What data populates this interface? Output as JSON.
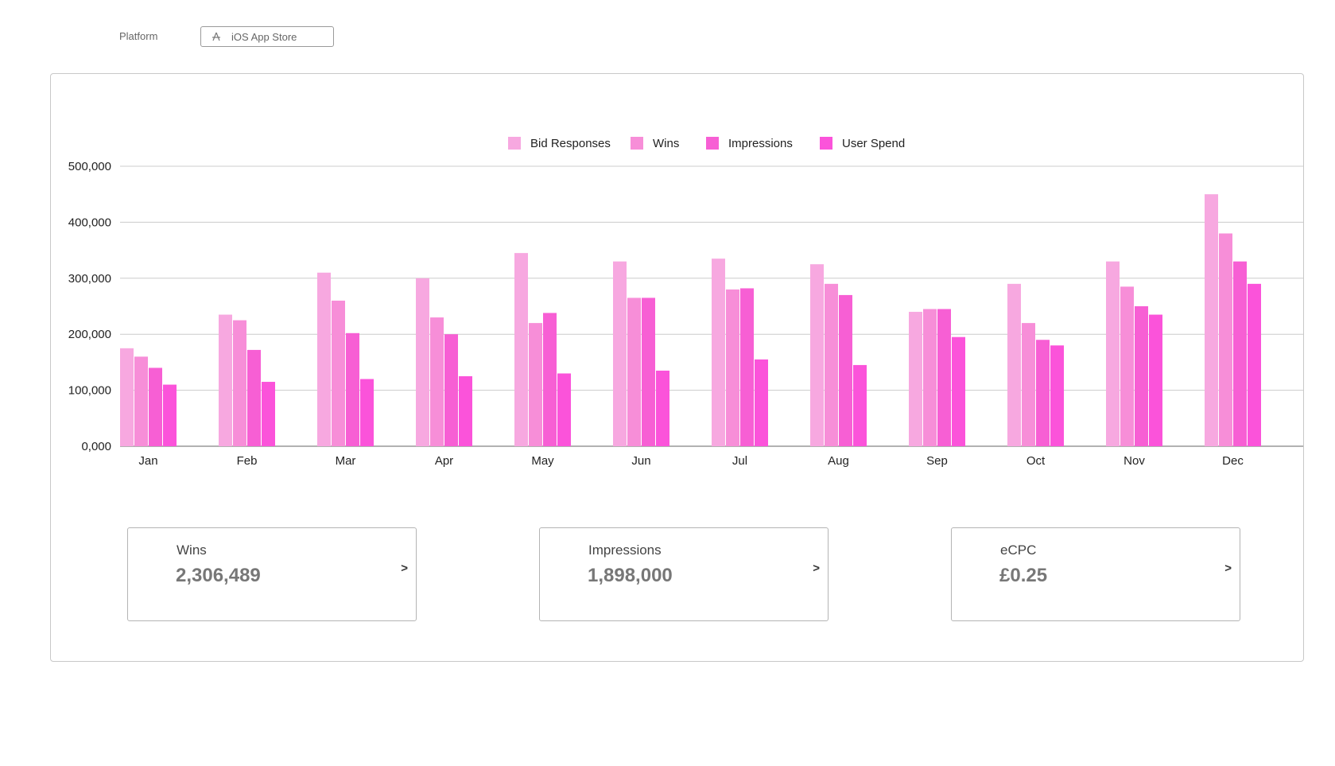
{
  "filter": {
    "label": "Platform",
    "selected": "iOS App Store",
    "icon": "app-store-icon"
  },
  "colors": {
    "series": [
      "#f7a8e0",
      "#f78ed8",
      "#f75fd4",
      "#fb53da"
    ],
    "grid": "#cccccc",
    "axis": "#999999"
  },
  "chart_data": {
    "type": "bar",
    "categories": [
      "Jan",
      "Feb",
      "Mar",
      "Apr",
      "May",
      "Jun",
      "Jul",
      "Aug",
      "Sep",
      "Oct",
      "Nov",
      "Dec"
    ],
    "series": [
      {
        "name": "Bid Responses",
        "values": [
          175000,
          235000,
          310000,
          300000,
          345000,
          330000,
          335000,
          325000,
          240000,
          290000,
          330000,
          450000
        ]
      },
      {
        "name": "Wins",
        "values": [
          160000,
          225000,
          260000,
          230000,
          220000,
          265000,
          280000,
          290000,
          245000,
          220000,
          285000,
          380000
        ]
      },
      {
        "name": "Impressions",
        "values": [
          140000,
          172000,
          202000,
          200000,
          238000,
          265000,
          282000,
          270000,
          245000,
          190000,
          250000,
          330000
        ]
      },
      {
        "name": "User Spend",
        "values": [
          110000,
          115000,
          120000,
          125000,
          130000,
          135000,
          155000,
          145000,
          195000,
          180000,
          235000,
          290000
        ]
      }
    ],
    "yticks": [
      "0,000",
      "100,000",
      "200,000",
      "300,000",
      "400,000",
      "500,000"
    ],
    "ylim": [
      0,
      500000
    ],
    "grid": true,
    "legend_position": "top-center"
  },
  "kpis": [
    {
      "label": "Wins",
      "value": "2,306,489",
      "arrow": ">"
    },
    {
      "label": "Impressions",
      "value": "1,898,000",
      "arrow": ">"
    },
    {
      "label": "eCPC",
      "value": "£0.25",
      "arrow": ">"
    }
  ]
}
